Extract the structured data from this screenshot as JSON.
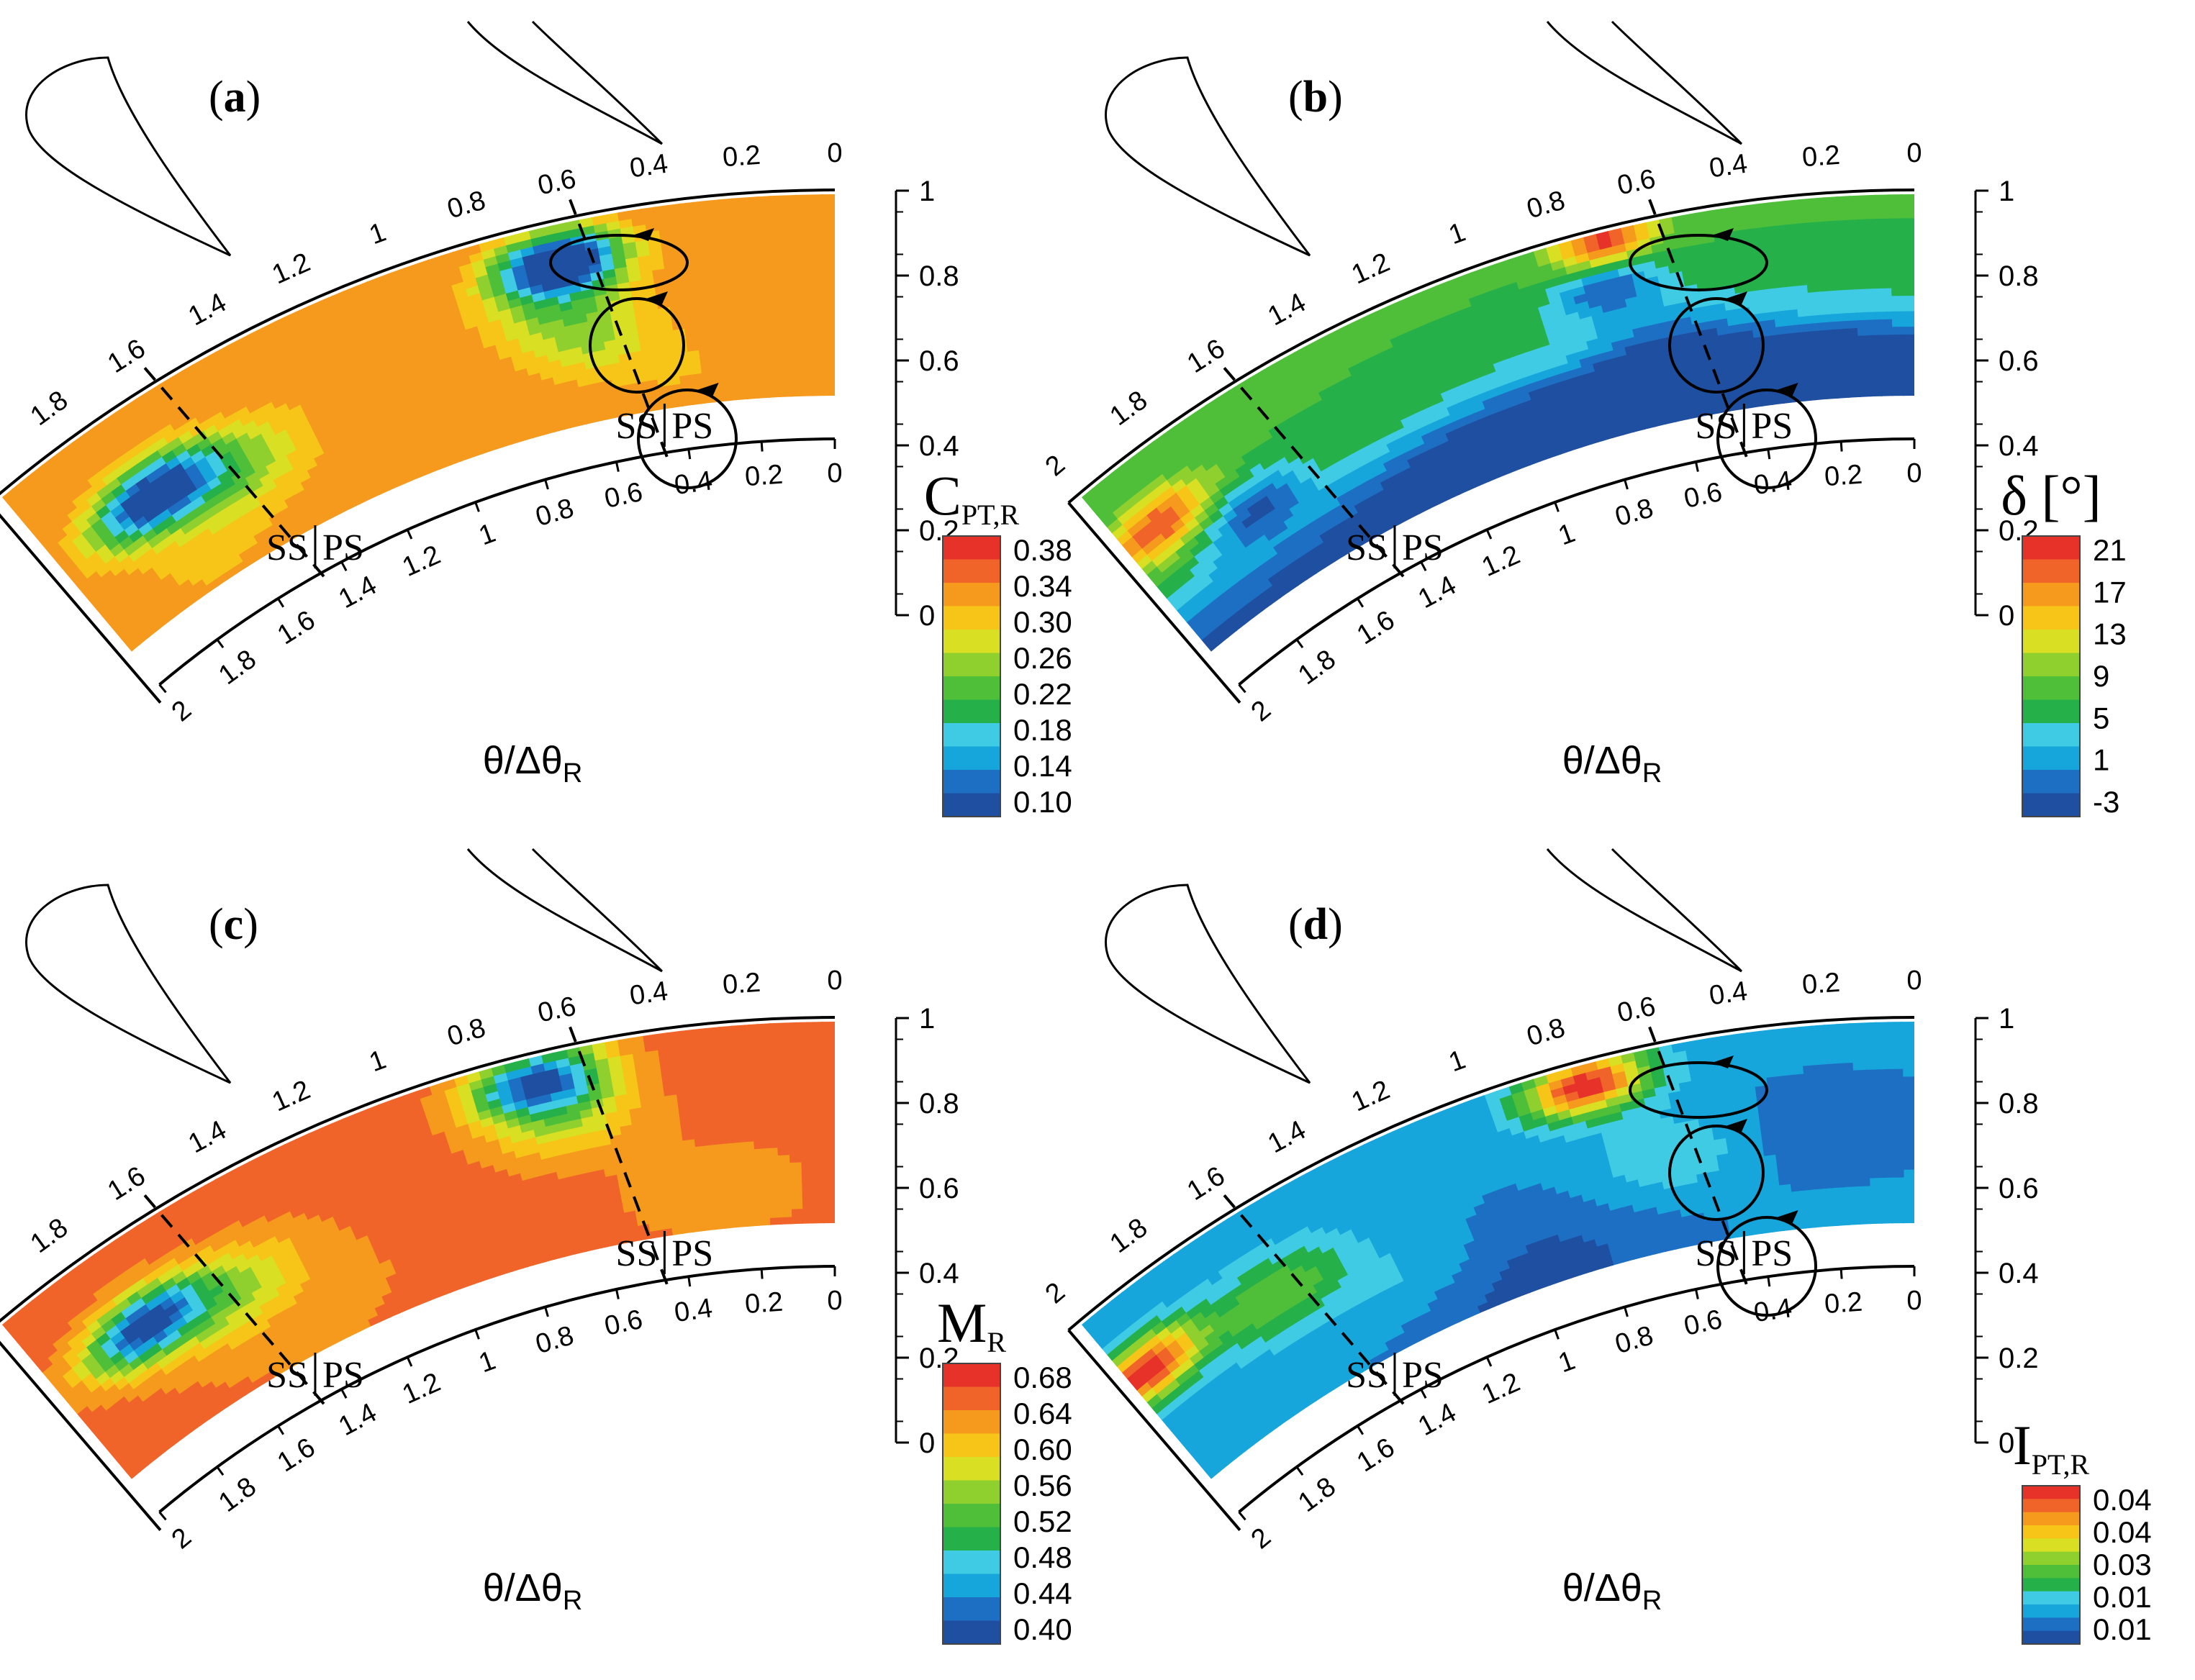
{
  "figure": {
    "colormap": [
      "#1f4fa0",
      "#1d6fc4",
      "#17a6dc",
      "#3fcbe3",
      "#26b04a",
      "#4fbf3a",
      "#8fd02e",
      "#d9df22",
      "#f6c518",
      "#f59a1d",
      "#f0642a",
      "#e63228"
    ],
    "line_color": "#000000"
  },
  "chart_data": [
    {
      "type": "heatmap",
      "panel_label": "(a)",
      "label_letter": "a",
      "quantity": "C",
      "quantity_sub": "PT,R",
      "quantity_unit": "",
      "colorbar_ticks": [
        "0.38",
        "0.34",
        "0.30",
        "0.26",
        "0.22",
        "0.18",
        "0.14",
        "0.10"
      ],
      "vrange": [
        0.1,
        0.38
      ],
      "background": 0.33,
      "blobs": [
        {
          "t": 0.64,
          "r": 0.82,
          "sig": 0.1,
          "amp": -0.28
        },
        {
          "t": 0.66,
          "r": 0.62,
          "sig": 0.12,
          "amp": -0.08
        },
        {
          "t": 0.6,
          "r": 0.4,
          "sig": 0.12,
          "amp": -0.06
        },
        {
          "t": 1.73,
          "r": 0.56,
          "sig": 0.11,
          "amp": -0.24
        },
        {
          "t": 1.55,
          "r": 0.45,
          "sig": 0.14,
          "amp": -0.09
        },
        {
          "t": 1.7,
          "r": 0.1,
          "sig": 0.22,
          "amp": -0.02
        },
        {
          "t": 0.4,
          "r": 0.18,
          "sig": 0.14,
          "amp": -0.02
        }
      ],
      "vortices": true
    },
    {
      "type": "heatmap",
      "panel_label": "(b)",
      "label_letter": "b",
      "quantity": "δ [°]",
      "quantity_sub": "",
      "quantity_unit": "°",
      "colorbar_ticks": [
        "21",
        "17",
        "13",
        "9",
        "5",
        "1",
        "-3"
      ],
      "vrange": [
        -3,
        23
      ],
      "background": 8,
      "blobs": [
        {
          "t": 1.9,
          "r": 0.65,
          "sig": 0.1,
          "amp": 13
        },
        {
          "t": 1.7,
          "r": 0.45,
          "sig": 0.1,
          "amp": -9
        },
        {
          "t": 0.7,
          "r": 0.96,
          "sig": 0.08,
          "amp": 14
        },
        {
          "t": 0.72,
          "r": 0.72,
          "sig": 0.09,
          "amp": -8
        },
        {
          "t": 0.6,
          "r": 0.38,
          "sig": 0.14,
          "amp": -6
        },
        {
          "t": 1.0,
          "r": 0.0,
          "sig": 0.3,
          "amp": -10
        },
        {
          "t": 0.2,
          "r": 0.05,
          "sig": 0.3,
          "amp": -9
        }
      ],
      "radial_gradient": -12,
      "vortices": true
    },
    {
      "type": "heatmap",
      "panel_label": "(c)",
      "label_letter": "c",
      "quantity": "M",
      "quantity_sub": "R",
      "quantity_unit": "",
      "colorbar_ticks": [
        "0.68",
        "0.64",
        "0.60",
        "0.56",
        "0.52",
        "0.48",
        "0.44",
        "0.40"
      ],
      "vrange": [
        0.4,
        0.7
      ],
      "background": 0.665,
      "blobs": [
        {
          "t": 0.68,
          "r": 0.88,
          "sig": 0.11,
          "amp": -0.25
        },
        {
          "t": 0.64,
          "r": 0.66,
          "sig": 0.12,
          "amp": -0.08
        },
        {
          "t": 1.75,
          "r": 0.57,
          "sig": 0.11,
          "amp": -0.24
        },
        {
          "t": 1.55,
          "r": 0.48,
          "sig": 0.14,
          "amp": -0.09
        },
        {
          "t": 1.4,
          "r": 0.2,
          "sig": 0.3,
          "amp": -0.02
        },
        {
          "t": 0.3,
          "r": 0.2,
          "sig": 0.3,
          "amp": -0.02
        }
      ],
      "vortices": false
    },
    {
      "type": "heatmap",
      "panel_label": "(d)",
      "label_letter": "d",
      "quantity": "I",
      "quantity_sub": "PT,R",
      "quantity_unit": "",
      "colorbar_ticks": [
        "0.04",
        "0.04",
        "0.03",
        "0.01",
        "0.01"
      ],
      "vrange": [
        0.005,
        0.045
      ],
      "background": 0.013,
      "blobs": [
        {
          "t": 0.75,
          "r": 0.9,
          "sig": 0.1,
          "amp": 0.032
        },
        {
          "t": 1.95,
          "r": 0.62,
          "sig": 0.1,
          "amp": 0.032
        },
        {
          "t": 1.6,
          "r": 0.55,
          "sig": 0.13,
          "amp": 0.012
        },
        {
          "t": 0.6,
          "r": 0.45,
          "sig": 0.15,
          "amp": 0.006
        },
        {
          "t": 1.3,
          "r": 0.3,
          "sig": 0.15,
          "amp": 0.004
        },
        {
          "t": 1.0,
          "r": 0.05,
          "sig": 0.3,
          "amp": -0.006
        },
        {
          "t": 0.2,
          "r": 0.5,
          "sig": 0.2,
          "amp": -0.004
        }
      ],
      "vortices": true
    }
  ],
  "axes": {
    "theta_ticks": [
      "2",
      "1.8",
      "1.6",
      "1.4",
      "1.2",
      "1",
      "0.8",
      "0.6",
      "0.4",
      "0.2",
      "0"
    ],
    "radial_ticks": [
      "1",
      "0.8",
      "0.6",
      "0.4",
      "0.2",
      "0"
    ],
    "xlabel_main": "θ/Δθ",
    "xlabel_sub": "R",
    "ss_label": "SS",
    "ps_label": "PS"
  }
}
